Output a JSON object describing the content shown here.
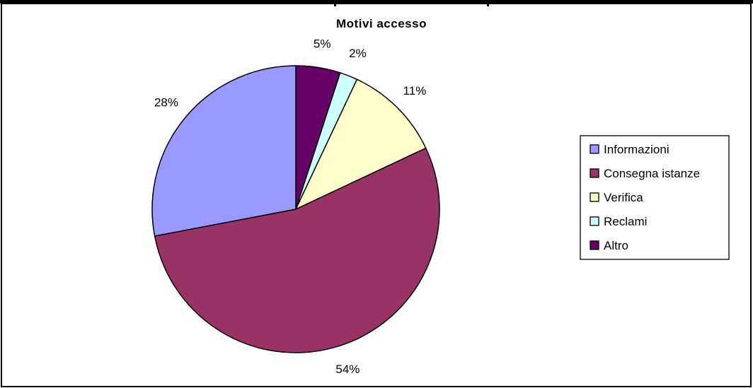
{
  "chart_data": {
    "type": "pie",
    "title": "Motivi accesso",
    "categories": [
      "Informazioni",
      "Consegna istanze",
      "Verifica",
      "Reclami",
      "Altro"
    ],
    "values": [
      28,
      54,
      11,
      2,
      5
    ],
    "labels": [
      "28%",
      "54%",
      "11%",
      "2%",
      "5%"
    ],
    "colors": [
      "#9999FF",
      "#993366",
      "#FFFFCC",
      "#CCFFFF",
      "#660066"
    ],
    "legend_position": "right"
  }
}
